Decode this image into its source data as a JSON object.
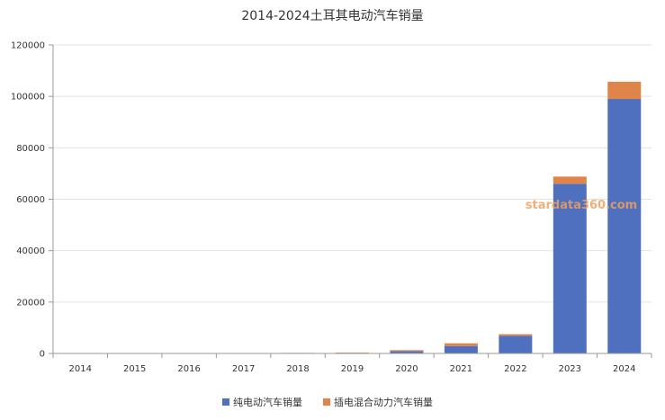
{
  "chart_data": {
    "type": "bar",
    "stacked": true,
    "title": "2014-2024土耳其电动汽车销量",
    "categories": [
      "2014",
      "2015",
      "2016",
      "2017",
      "2018",
      "2019",
      "2020",
      "2021",
      "2022",
      "2023",
      "2024"
    ],
    "series": [
      {
        "name": "纯电动汽车销量",
        "color": "#4e70be",
        "values": [
          30,
          50,
          70,
          80,
          140,
          220,
          850,
          2900,
          6900,
          66000,
          99000
        ]
      },
      {
        "name": "插电混合动力汽车销量",
        "color": "#e0854a",
        "values": [
          20,
          30,
          30,
          50,
          80,
          130,
          450,
          1050,
          600,
          2800,
          6700
        ]
      }
    ],
    "ylim": [
      0,
      120000
    ],
    "yticks": [
      0,
      20000,
      40000,
      60000,
      80000,
      100000,
      120000
    ],
    "grid": true,
    "legend_position": "bottom"
  },
  "watermark": "stardata360.com"
}
